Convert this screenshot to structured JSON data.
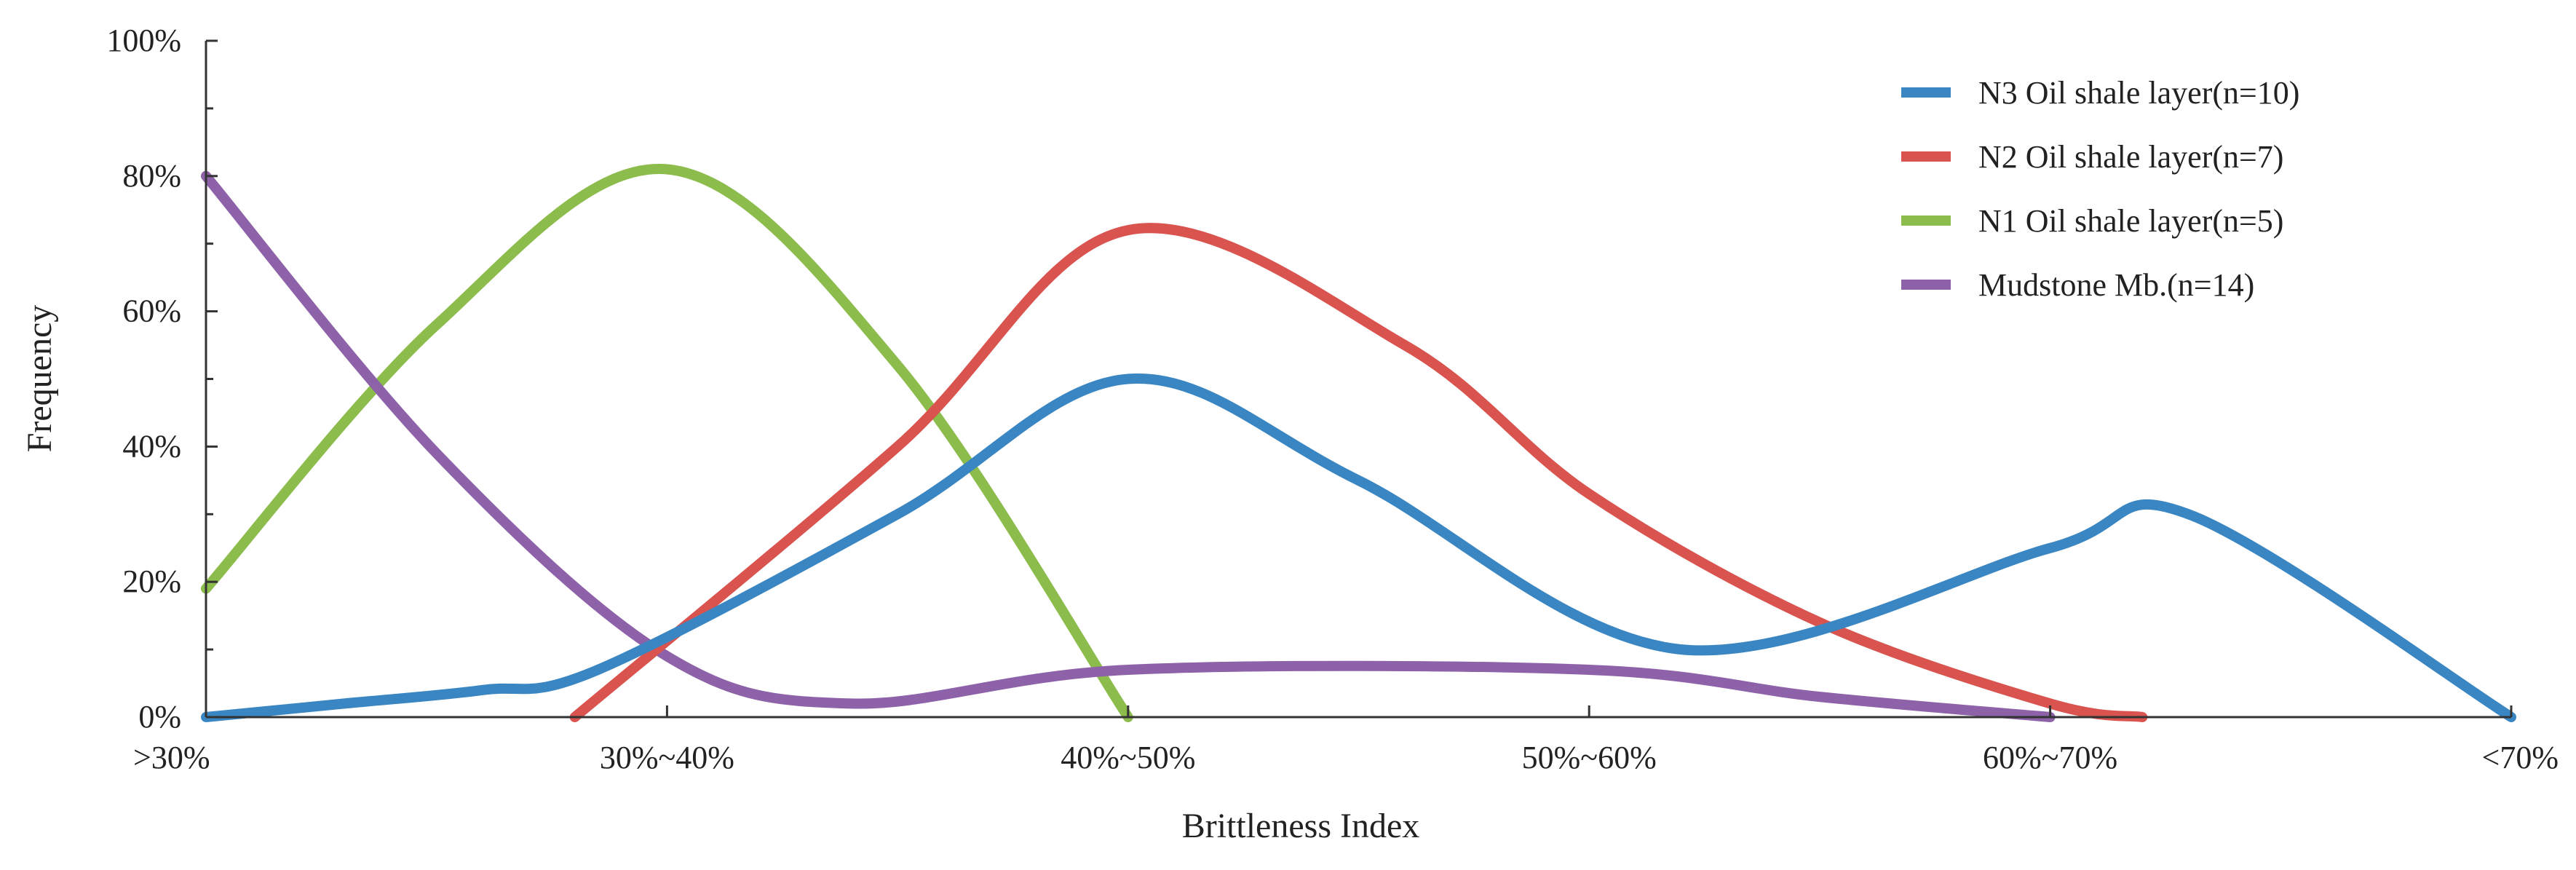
{
  "chart_data": {
    "type": "line",
    "title": "",
    "xlabel": "Brittleness Index",
    "ylabel": "Frequency",
    "categories": [
      ">30%",
      "30%~40%",
      "40%~50%",
      "50%~60%",
      "60%~70%",
      "<70%"
    ],
    "y_ticks": [
      "0%",
      "20%",
      "40%",
      "60%",
      "80%",
      "100%"
    ],
    "ylim": [
      0,
      100
    ],
    "legend_position": "top-right",
    "grid": false,
    "series": [
      {
        "name": "N3 Oil shale layer(n=10)",
        "color": "#3a86c3",
        "points": [
          [
            0,
            0
          ],
          [
            0.3,
            2
          ],
          [
            0.6,
            4
          ],
          [
            0.85,
            7
          ],
          [
            1.5,
            30
          ],
          [
            2.0,
            50
          ],
          [
            2.5,
            35
          ],
          [
            3.2,
            10
          ],
          [
            4.0,
            25
          ],
          [
            4.3,
            30
          ],
          [
            5.0,
            0
          ]
        ]
      },
      {
        "name": "N2 Oil shale layer(n=7)",
        "color": "#d9534f",
        "points": [
          [
            0.8,
            0
          ],
          [
            1.5,
            40
          ],
          [
            2.0,
            72
          ],
          [
            2.6,
            55
          ],
          [
            3.0,
            33
          ],
          [
            3.5,
            14
          ],
          [
            4.0,
            2
          ],
          [
            4.2,
            0
          ]
        ]
      },
      {
        "name": "N1 Oil shale layer(n=5)",
        "color": "#8cbc4c",
        "points": [
          [
            0,
            19
          ],
          [
            0.5,
            58
          ],
          [
            1.0,
            81
          ],
          [
            1.5,
            52
          ],
          [
            2.0,
            0
          ]
        ]
      },
      {
        "name": "Mudstone Mb.(n=14)",
        "color": "#8e62a8",
        "points": [
          [
            0,
            80
          ],
          [
            0.5,
            39
          ],
          [
            1.0,
            9
          ],
          [
            1.4,
            2
          ],
          [
            2.0,
            7
          ],
          [
            3.0,
            7
          ],
          [
            3.5,
            3
          ],
          [
            4.0,
            0
          ]
        ]
      }
    ]
  }
}
